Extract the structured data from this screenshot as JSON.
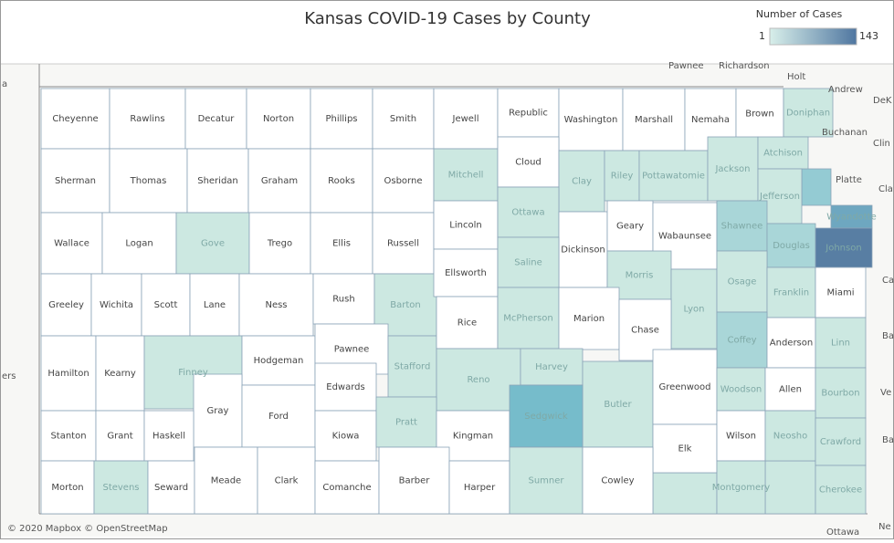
{
  "header": {
    "title": "Kansas COVID-19 Cases by County",
    "legend_title": "Number of Cases",
    "legend_min": 1,
    "legend_max": 143,
    "legend_colors": [
      "#d8efea",
      "#4f76a0"
    ]
  },
  "attribution": "© 2020 Mapbox © OpenStreetMap",
  "neighbors": [
    "Pawnee",
    "Richardson",
    "Holt",
    "Andrew",
    "DeK",
    "Buchanan",
    "Clin",
    "Platte",
    "Cla",
    "Ca",
    "Ba",
    "Ve",
    "Ba",
    "Ne",
    "Ottawa",
    "a",
    "ers"
  ],
  "counties": [
    {
      "name": "Cheyenne",
      "color": "#ffffff"
    },
    {
      "name": "Rawlins",
      "color": "#ffffff"
    },
    {
      "name": "Decatur",
      "color": "#ffffff"
    },
    {
      "name": "Norton",
      "color": "#ffffff"
    },
    {
      "name": "Phillips",
      "color": "#ffffff"
    },
    {
      "name": "Smith",
      "color": "#ffffff"
    },
    {
      "name": "Jewell",
      "color": "#ffffff"
    },
    {
      "name": "Republic",
      "color": "#ffffff"
    },
    {
      "name": "Washington",
      "color": "#ffffff"
    },
    {
      "name": "Marshall",
      "color": "#ffffff"
    },
    {
      "name": "Nemaha",
      "color": "#ffffff"
    },
    {
      "name": "Brown",
      "color": "#ffffff"
    },
    {
      "name": "Doniphan",
      "color": "#cce8e1"
    },
    {
      "name": "Sherman",
      "color": "#ffffff"
    },
    {
      "name": "Thomas",
      "color": "#ffffff"
    },
    {
      "name": "Sheridan",
      "color": "#ffffff"
    },
    {
      "name": "Graham",
      "color": "#ffffff"
    },
    {
      "name": "Rooks",
      "color": "#ffffff"
    },
    {
      "name": "Osborne",
      "color": "#ffffff"
    },
    {
      "name": "Mitchell",
      "color": "#cce8e1"
    },
    {
      "name": "Cloud",
      "color": "#ffffff"
    },
    {
      "name": "Clay",
      "color": "#cce8e1"
    },
    {
      "name": "Riley",
      "color": "#cce8e1"
    },
    {
      "name": "Pottawatomie",
      "color": "#cce8e1"
    },
    {
      "name": "Jackson",
      "color": "#cce8e1"
    },
    {
      "name": "Atchison",
      "color": "#cce8e1"
    },
    {
      "name": "Jefferson",
      "color": "#cce8e1"
    },
    {
      "name": "Wallace",
      "color": "#ffffff"
    },
    {
      "name": "Logan",
      "color": "#ffffff"
    },
    {
      "name": "Gove",
      "color": "#cce8e1"
    },
    {
      "name": "Trego",
      "color": "#ffffff"
    },
    {
      "name": "Ellis",
      "color": "#ffffff"
    },
    {
      "name": "Russell",
      "color": "#ffffff"
    },
    {
      "name": "Lincoln",
      "color": "#ffffff"
    },
    {
      "name": "Ottawa",
      "color": "#cce8e1"
    },
    {
      "name": "Dickinson",
      "color": "#ffffff"
    },
    {
      "name": "Geary",
      "color": "#ffffff"
    },
    {
      "name": "Wabaunsee",
      "color": "#ffffff"
    },
    {
      "name": "Shawnee",
      "color": "#a9d6d8"
    },
    {
      "name": "Douglas",
      "color": "#a9d6d8"
    },
    {
      "name": "Wyandotte",
      "color": "#6ea7c0"
    },
    {
      "name": "Johnson",
      "color": "#587ea3"
    },
    {
      "name": "Greeley",
      "color": "#ffffff"
    },
    {
      "name": "Wichita",
      "color": "#ffffff"
    },
    {
      "name": "Scott",
      "color": "#ffffff"
    },
    {
      "name": "Lane",
      "color": "#ffffff"
    },
    {
      "name": "Ness",
      "color": "#ffffff"
    },
    {
      "name": "Rush",
      "color": "#ffffff"
    },
    {
      "name": "Barton",
      "color": "#cce8e1"
    },
    {
      "name": "Ellsworth",
      "color": "#ffffff"
    },
    {
      "name": "Saline",
      "color": "#cce8e1"
    },
    {
      "name": "Morris",
      "color": "#cce8e1"
    },
    {
      "name": "Lyon",
      "color": "#cce8e1"
    },
    {
      "name": "Osage",
      "color": "#cce8e1"
    },
    {
      "name": "Franklin",
      "color": "#cce8e1"
    },
    {
      "name": "Miami",
      "color": "#ffffff"
    },
    {
      "name": "Hamilton",
      "color": "#ffffff"
    },
    {
      "name": "Kearny",
      "color": "#ffffff"
    },
    {
      "name": "Finney",
      "color": "#cce8e1"
    },
    {
      "name": "Hodgeman",
      "color": "#ffffff"
    },
    {
      "name": "Pawnee",
      "color": "#ffffff"
    },
    {
      "name": "Stafford",
      "color": "#cce8e1"
    },
    {
      "name": "Rice",
      "color": "#ffffff"
    },
    {
      "name": "McPherson",
      "color": "#cce8e1"
    },
    {
      "name": "Marion",
      "color": "#ffffff"
    },
    {
      "name": "Chase",
      "color": "#ffffff"
    },
    {
      "name": "Coffey",
      "color": "#a9d6d8"
    },
    {
      "name": "Anderson",
      "color": "#ffffff"
    },
    {
      "name": "Linn",
      "color": "#cce8e1"
    },
    {
      "name": "Gray",
      "color": "#ffffff"
    },
    {
      "name": "Ford",
      "color": "#ffffff"
    },
    {
      "name": "Edwards",
      "color": "#ffffff"
    },
    {
      "name": "Reno",
      "color": "#cce8e1"
    },
    {
      "name": "Harvey",
      "color": "#cce8e1"
    },
    {
      "name": "Butler",
      "color": "#cce8e1"
    },
    {
      "name": "Greenwood",
      "color": "#ffffff"
    },
    {
      "name": "Woodson",
      "color": "#cce8e1"
    },
    {
      "name": "Allen",
      "color": "#ffffff"
    },
    {
      "name": "Bourbon",
      "color": "#cce8e1"
    },
    {
      "name": "Stanton",
      "color": "#ffffff"
    },
    {
      "name": "Grant",
      "color": "#ffffff"
    },
    {
      "name": "Haskell",
      "color": "#ffffff"
    },
    {
      "name": "Kiowa",
      "color": "#ffffff"
    },
    {
      "name": "Pratt",
      "color": "#cce8e1"
    },
    {
      "name": "Kingman",
      "color": "#ffffff"
    },
    {
      "name": "Sedgwick",
      "color": "#76bccb"
    },
    {
      "name": "Elk",
      "color": "#ffffff"
    },
    {
      "name": "Wilson",
      "color": "#ffffff"
    },
    {
      "name": "Neosho",
      "color": "#cce8e1"
    },
    {
      "name": "Crawford",
      "color": "#cce8e1"
    },
    {
      "name": "Morton",
      "color": "#ffffff"
    },
    {
      "name": "Stevens",
      "color": "#cce8e1"
    },
    {
      "name": "Seward",
      "color": "#ffffff"
    },
    {
      "name": "Meade",
      "color": "#ffffff"
    },
    {
      "name": "Clark",
      "color": "#ffffff"
    },
    {
      "name": "Comanche",
      "color": "#ffffff"
    },
    {
      "name": "Barber",
      "color": "#ffffff"
    },
    {
      "name": "Harper",
      "color": "#ffffff"
    },
    {
      "name": "Sumner",
      "color": "#cce8e1"
    },
    {
      "name": "Cowley",
      "color": "#ffffff"
    },
    {
      "name": "Montgomery",
      "color": "#cce8e1"
    },
    {
      "name": "Cherokee",
      "color": "#cce8e1"
    }
  ]
}
